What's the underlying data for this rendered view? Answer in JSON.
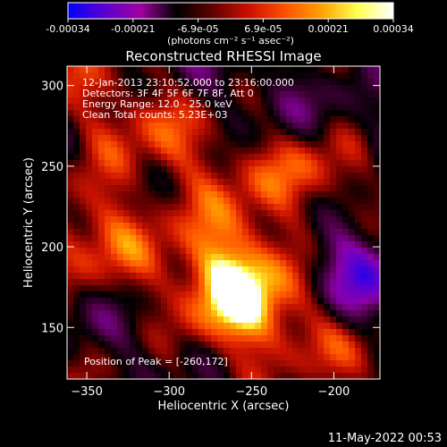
{
  "colorbar": {
    "ticks": [
      "-0.00034",
      "-0.00021",
      "-6.9e-05",
      "6.9e-05",
      "0.00021",
      "0.00034"
    ],
    "unit_label": "(photons cm⁻² s⁻¹ asec⁻²)",
    "colormap": [
      "#0000ff",
      "#5a00d0",
      "#a000a0",
      "#000000",
      "#600000",
      "#cc1000",
      "#ff5000",
      "#ffa000",
      "#ffff50",
      "#ffffff"
    ]
  },
  "chart_data": {
    "type": "heatmap",
    "title": "Reconstructed RHESSI Image",
    "xlabel": "Heliocentric X (arcsec)",
    "ylabel": "Heliocentric Y (arcsec)",
    "xlim": [
      -362,
      -172
    ],
    "ylim": [
      118,
      312
    ],
    "xticks": [
      -350,
      -300,
      -250,
      -200
    ],
    "yticks": [
      150,
      200,
      250,
      300
    ],
    "annotations": [
      "12-Jan-2013 23:10:52.000 to 23:16:00.000",
      "Detectors: 3F 4F 5F 6F 7F 8F, Att 0",
      "Energy Range: 12.0 - 25.0 keV",
      "Clean    Total counts: 5.23E+03",
      "Position of Peak = [-260,172]"
    ],
    "peak": {
      "x": -260,
      "y": 172
    },
    "value_range": [
      -0.00034,
      0.00034
    ],
    "grid": false
  },
  "footer": {
    "timestamp": "11-May-2022 00:53"
  }
}
